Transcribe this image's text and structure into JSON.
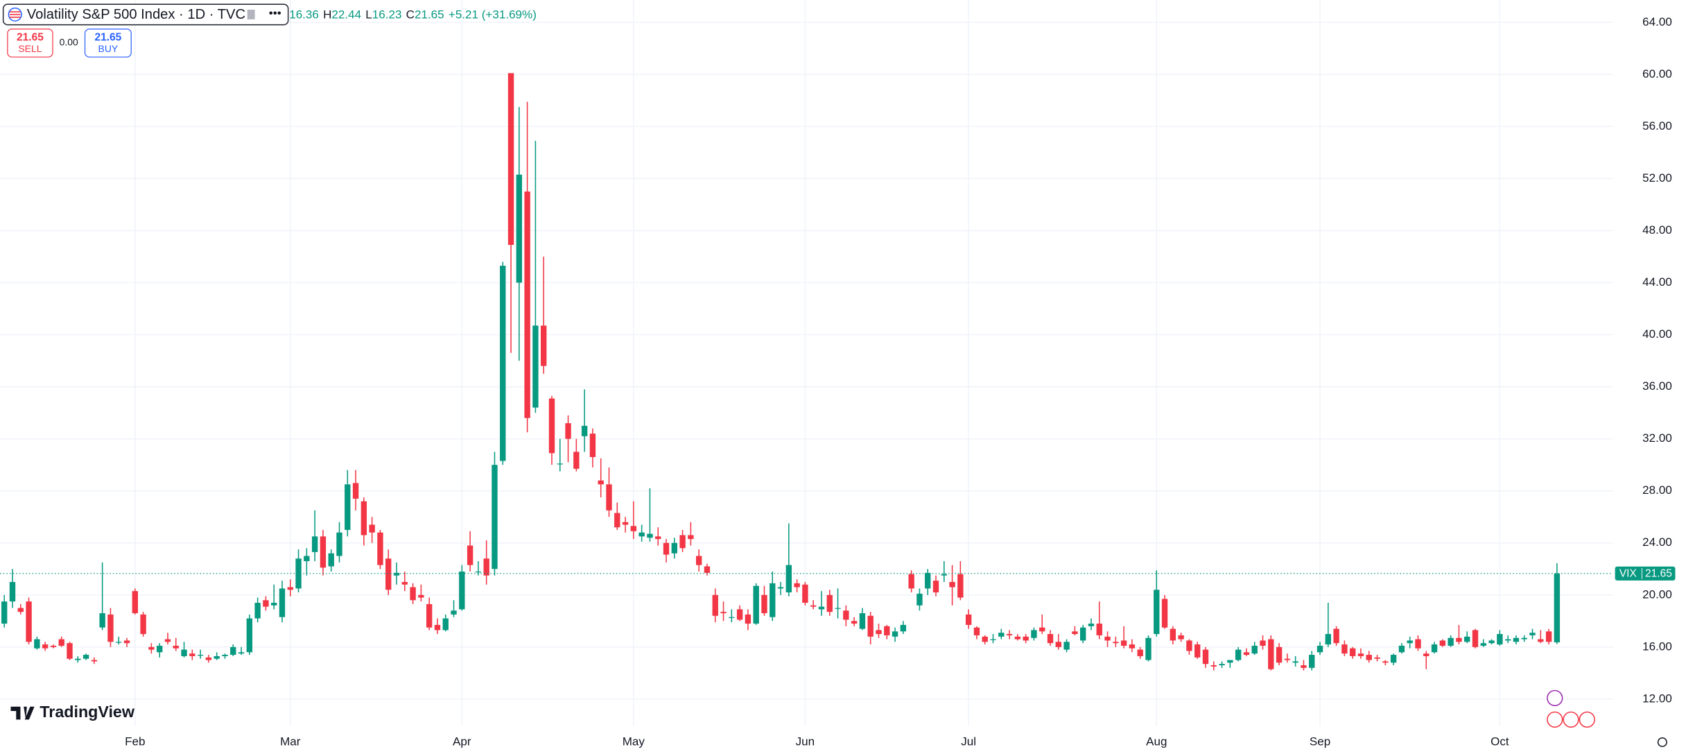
{
  "header": {
    "symbol": "Volatility S&P 500 Index · 1D · TVC",
    "ohlc": [
      {
        "value": 16.36
      },
      {
        "prefix": "H",
        "value": 22.44
      },
      {
        "prefix": "L",
        "value": 16.23
      },
      {
        "prefix": "C",
        "value": 21.65
      }
    ],
    "change": "+5.21 (+31.69%)"
  },
  "trade": {
    "sell_price": 21.65,
    "sell": "SELL",
    "spread": "0.00",
    "buy_price": 21.65,
    "buy": "BUY"
  },
  "brand": "TradingView",
  "chart_data": {
    "type": "candlestick",
    "categories": [
      null,
      null,
      null,
      null,
      null,
      null,
      null,
      null,
      null,
      null,
      null,
      null,
      null,
      null,
      null,
      null,
      "Feb",
      null,
      null,
      null,
      null,
      null,
      null,
      null,
      null,
      null,
      null,
      null,
      null,
      null,
      null,
      null,
      null,
      null,
      null,
      "Mar",
      null,
      null,
      null,
      null,
      null,
      null,
      null,
      null,
      null,
      null,
      null,
      null,
      null,
      null,
      null,
      null,
      null,
      null,
      null,
      null,
      "Apr",
      null,
      null,
      null,
      null,
      null,
      null,
      null,
      null,
      null,
      null,
      null,
      null,
      null,
      null,
      null,
      null,
      null,
      null,
      null,
      null,
      "May",
      null,
      null,
      null,
      null,
      null,
      null,
      null,
      null,
      null,
      null,
      null,
      null,
      null,
      null,
      null,
      null,
      null,
      null,
      null,
      null,
      "Jun",
      null,
      null,
      null,
      null,
      null,
      null,
      null,
      null,
      null,
      null,
      null,
      null,
      null,
      null,
      null,
      null,
      null,
      null,
      null,
      "Jul",
      null,
      null,
      null,
      null,
      null,
      null,
      null,
      null,
      null,
      null,
      null,
      null,
      null,
      null,
      null,
      null,
      null,
      null,
      null,
      null,
      null,
      null,
      "Aug",
      null,
      null,
      null,
      null,
      null,
      null,
      null,
      null,
      null,
      null,
      null,
      null,
      null,
      null,
      null,
      null,
      null,
      null,
      null,
      "Sep",
      null,
      null,
      null,
      null,
      null,
      null,
      null,
      null,
      null,
      null,
      null,
      null,
      null,
      null,
      null,
      null,
      null,
      null,
      null,
      null,
      null,
      "Oct",
      null,
      null,
      null,
      null,
      null,
      null,
      null
    ],
    "open": [
      17.8,
      19.5,
      19.0,
      19.5,
      15.9,
      16.2,
      16.1,
      16.6,
      16.3,
      15.0,
      15.1,
      15.0,
      17.5,
      18.5,
      16.4,
      16.5,
      20.3,
      18.5,
      16.0,
      15.6,
      16.6,
      16.1,
      15.3,
      15.5,
      15.4,
      15.2,
      15.1,
      15.3,
      15.4,
      15.5,
      15.6,
      18.2,
      19.6,
      19.2,
      18.3,
      20.6,
      20.5,
      22.6,
      23.3,
      24.5,
      22.2,
      23.0,
      25.0,
      28.6,
      27.2,
      25.4,
      24.8,
      22.8,
      21.5,
      21.0,
      20.6,
      20.0,
      19.3,
      17.7,
      17.3,
      18.5,
      18.9,
      23.8,
      21.8,
      22.8,
      22.0,
      30.3,
      60.1,
      44.0,
      51.0,
      34.4,
      40.7,
      35.1,
      30.1,
      33.2,
      31.0,
      32.2,
      32.4,
      28.8,
      28.5,
      26.3,
      25.6,
      25.3,
      24.5,
      24.4,
      24.5,
      24.0,
      23.2,
      24.6,
      24.6,
      23.0,
      22.2,
      20.0,
      18.7,
      18.3,
      18.9,
      18.5,
      17.8,
      20.0,
      18.3,
      20.5,
      20.2,
      20.9,
      20.8,
      19.2,
      18.9,
      20.0,
      19.0,
      18.8,
      18.0,
      17.4,
      18.4,
      17.3,
      17.6,
      16.8,
      17.2,
      21.6,
      19.2,
      20.5,
      21.1,
      21.5,
      21.0,
      21.6,
      18.5,
      17.5,
      16.8,
      16.6,
      16.8,
      17.0,
      16.8,
      16.8,
      16.7,
      17.5,
      17.0,
      16.4,
      15.8,
      17.2,
      16.5,
      17.6,
      17.8,
      16.8,
      16.4,
      16.5,
      16.2,
      15.8,
      15.0,
      17.0,
      19.7,
      17.4,
      16.9,
      16.5,
      16.2,
      15.8,
      14.6,
      14.6,
      14.8,
      15.0,
      15.6,
      15.5,
      16.5,
      16.6,
      16.0,
      15.1,
      14.8,
      14.6,
      14.4,
      15.6,
      16.2,
      17.4,
      16.2,
      15.9,
      15.5,
      15.4,
      15.2,
      14.9,
      14.8,
      15.6,
      16.3,
      16.6,
      15.5,
      15.6,
      16.5,
      16.1,
      16.7,
      16.4,
      17.3,
      16.1,
      16.3,
      16.2,
      16.5,
      16.4,
      16.6,
      16.9,
      16.6,
      17.2,
      16.36
    ],
    "high": [
      20.0,
      22.0,
      19.3,
      19.8,
      16.8,
      16.4,
      16.2,
      16.8,
      16.4,
      15.3,
      15.5,
      15.2,
      22.5,
      19.0,
      16.8,
      16.7,
      20.5,
      18.7,
      16.3,
      16.3,
      17.1,
      16.7,
      16.4,
      15.8,
      15.8,
      15.4,
      15.6,
      15.5,
      16.2,
      16.0,
      18.5,
      19.8,
      19.9,
      20.8,
      21.1,
      21.2,
      23.5,
      23.6,
      26.5,
      25.0,
      23.5,
      25.6,
      29.6,
      29.6,
      27.5,
      26.0,
      25.0,
      23.5,
      22.5,
      21.8,
      20.9,
      20.8,
      19.8,
      18.2,
      18.5,
      19.6,
      22.3,
      24.9,
      22.6,
      24.2,
      31.0,
      45.6,
      60.1,
      57.5,
      57.9,
      54.9,
      46.0,
      35.3,
      32.0,
      33.8,
      32.0,
      35.8,
      32.8,
      30.5,
      29.8,
      27.1,
      26.0,
      27.2,
      25.4,
      28.2,
      25.2,
      24.3,
      24.4,
      25.0,
      25.6,
      23.5,
      22.4,
      20.5,
      19.5,
      18.9,
      19.2,
      18.9,
      20.9,
      20.7,
      21.8,
      21.0,
      25.5,
      21.2,
      21.0,
      19.6,
      20.3,
      20.4,
      20.5,
      19.2,
      18.3,
      19.0,
      18.7,
      17.8,
      17.7,
      17.5,
      18.0,
      21.9,
      20.5,
      22.0,
      21.5,
      22.6,
      22.3,
      22.6,
      18.9,
      17.6,
      16.9,
      17.0,
      17.4,
      17.3,
      17.0,
      17.0,
      17.5,
      18.5,
      17.3,
      17.0,
      16.6,
      17.6,
      17.7,
      18.2,
      19.5,
      17.2,
      16.8,
      17.6,
      16.6,
      16.0,
      16.9,
      21.9,
      20.0,
      17.6,
      17.1,
      16.6,
      16.4,
      16.0,
      14.9,
      14.9,
      15.0,
      16.0,
      15.9,
      16.4,
      16.9,
      16.9,
      16.3,
      15.5,
      15.3,
      15.0,
      15.7,
      16.4,
      19.4,
      17.6,
      16.5,
      16.0,
      15.9,
      15.7,
      15.4,
      15.0,
      15.5,
      16.3,
      16.8,
      16.9,
      15.7,
      16.4,
      16.6,
      16.9,
      17.7,
      17.2,
      17.4,
      16.6,
      16.6,
      17.3,
      16.9,
      16.9,
      16.9,
      17.4,
      17.3,
      17.4,
      22.44
    ],
    "low": [
      17.5,
      19.0,
      18.5,
      16.2,
      15.8,
      15.7,
      15.9,
      16.0,
      15.0,
      14.8,
      15.0,
      14.7,
      17.3,
      16.0,
      16.2,
      16.0,
      18.5,
      16.8,
      15.5,
      15.2,
      16.2,
      15.7,
      15.2,
      15.0,
      15.1,
      14.8,
      15.0,
      15.1,
      15.3,
      15.4,
      15.4,
      17.9,
      18.8,
      18.9,
      17.9,
      19.9,
      20.2,
      21.5,
      22.6,
      21.5,
      21.8,
      22.5,
      24.5,
      26.5,
      23.8,
      24.0,
      22.0,
      20.0,
      20.8,
      20.3,
      19.3,
      19.5,
      17.3,
      17.0,
      17.2,
      18.3,
      18.8,
      21.8,
      21.5,
      20.8,
      21.5,
      30.0,
      38.6,
      38.0,
      32.5,
      34.0,
      37.0,
      30.0,
      29.5,
      30.2,
      29.5,
      31.0,
      29.8,
      27.5,
      26.0,
      25.0,
      24.8,
      24.3,
      24.1,
      24.1,
      23.8,
      22.5,
      22.8,
      23.3,
      23.8,
      21.8,
      21.5,
      17.9,
      18.0,
      17.9,
      18.0,
      17.3,
      17.7,
      18.4,
      18.0,
      20.0,
      19.9,
      20.2,
      19.2,
      18.9,
      18.4,
      18.4,
      18.2,
      17.6,
      17.6,
      17.3,
      16.2,
      16.7,
      16.6,
      16.4,
      17.0,
      20.2,
      18.8,
      20.0,
      19.9,
      21.0,
      19.2,
      19.6,
      17.4,
      16.6,
      16.2,
      16.3,
      16.6,
      16.6,
      16.5,
      16.3,
      16.5,
      17.0,
      16.1,
      15.8,
      15.6,
      16.9,
      16.3,
      17.3,
      16.6,
      16.0,
      16.0,
      15.9,
      15.6,
      15.1,
      14.9,
      16.8,
      17.4,
      16.2,
      16.4,
      15.4,
      15.1,
      14.4,
      14.2,
      14.4,
      14.4,
      14.9,
      15.3,
      15.4,
      15.8,
      14.2,
      14.6,
      14.8,
      14.5,
      14.2,
      14.2,
      15.4,
      16.0,
      16.1,
      15.3,
      15.1,
      15.1,
      14.8,
      14.9,
      14.6,
      14.6,
      15.5,
      15.9,
      15.7,
      14.3,
      15.5,
      16.0,
      16.0,
      16.2,
      16.3,
      15.9,
      16.0,
      16.2,
      16.1,
      16.3,
      16.2,
      16.4,
      16.6,
      16.3,
      16.2,
      16.23
    ],
    "close": [
      19.5,
      21.0,
      18.7,
      16.4,
      16.6,
      15.9,
      16.0,
      16.1,
      15.1,
      15.1,
      15.4,
      14.9,
      18.6,
      16.4,
      16.4,
      16.3,
      18.6,
      17.0,
      15.8,
      16.1,
      16.4,
      15.9,
      15.8,
      15.3,
      15.4,
      15.0,
      15.3,
      15.4,
      16.0,
      15.6,
      18.2,
      19.4,
      19.1,
      19.4,
      20.5,
      20.4,
      22.8,
      23.0,
      24.5,
      22.1,
      23.2,
      24.8,
      28.5,
      27.4,
      24.6,
      24.8,
      22.3,
      20.4,
      21.7,
      20.8,
      19.6,
      19.8,
      17.5,
      17.3,
      18.2,
      18.8,
      21.8,
      22.3,
      21.8,
      21.5,
      30.0,
      45.3,
      46.9,
      52.3,
      33.6,
      40.7,
      37.6,
      30.9,
      30.1,
      32.0,
      29.7,
      33.0,
      30.6,
      28.5,
      26.5,
      25.2,
      25.4,
      24.9,
      24.8,
      24.7,
      24.3,
      23.1,
      24.0,
      23.6,
      24.3,
      22.3,
      21.7,
      18.4,
      18.6,
      18.3,
      18.1,
      17.8,
      20.7,
      18.6,
      20.9,
      20.6,
      22.3,
      20.6,
      19.4,
      19.1,
      19.1,
      18.7,
      19.0,
      18.1,
      17.8,
      18.6,
      16.8,
      17.0,
      16.9,
      17.2,
      17.7,
      20.5,
      20.1,
      21.7,
      20.2,
      21.6,
      20.6,
      19.8,
      17.7,
      16.9,
      16.4,
      16.6,
      17.1,
      16.9,
      16.6,
      16.5,
      17.3,
      17.2,
      16.3,
      16.0,
      16.4,
      17.0,
      17.5,
      17.8,
      16.9,
      16.5,
      16.3,
      16.1,
      15.9,
      15.3,
      16.7,
      20.4,
      17.5,
      16.5,
      16.6,
      15.7,
      15.2,
      14.7,
      14.5,
      14.7,
      15.0,
      15.8,
      15.4,
      16.1,
      16.1,
      14.3,
      14.8,
      15.0,
      14.9,
      14.4,
      15.4,
      16.1,
      17.0,
      16.3,
      15.5,
      15.3,
      15.3,
      15.0,
      15.1,
      14.8,
      15.4,
      16.1,
      16.5,
      15.9,
      15.3,
      16.2,
      16.1,
      16.7,
      16.4,
      16.8,
      16.0,
      16.3,
      16.5,
      17.0,
      16.6,
      16.7,
      16.7,
      17.1,
      16.4,
      16.4,
      21.65
    ],
    "up_color": "#089981",
    "down_color": "#f23645",
    "ylim": [
      9.93,
      65.72
    ],
    "yticks": [
      {
        "value": 12,
        "label": "12.00"
      },
      {
        "value": 16,
        "label": "16.00"
      },
      {
        "value": 20,
        "label": "20.00"
      },
      {
        "value": 24,
        "label": "24.00"
      },
      {
        "value": 28,
        "label": "28.00"
      },
      {
        "value": 32,
        "label": "32.00"
      },
      {
        "value": 36,
        "label": "36.00"
      },
      {
        "value": 40,
        "label": "40.00"
      },
      {
        "value": 44,
        "label": "44.00"
      },
      {
        "value": 48,
        "label": "48.00"
      },
      {
        "value": 52,
        "label": "52.00"
      },
      {
        "value": 56,
        "label": "56.00"
      },
      {
        "value": 60,
        "label": "60.00"
      },
      {
        "value": 64,
        "label": "64.00"
      }
    ],
    "grid": true,
    "last_price": 21.65,
    "price_label_symbol": "VIX"
  }
}
